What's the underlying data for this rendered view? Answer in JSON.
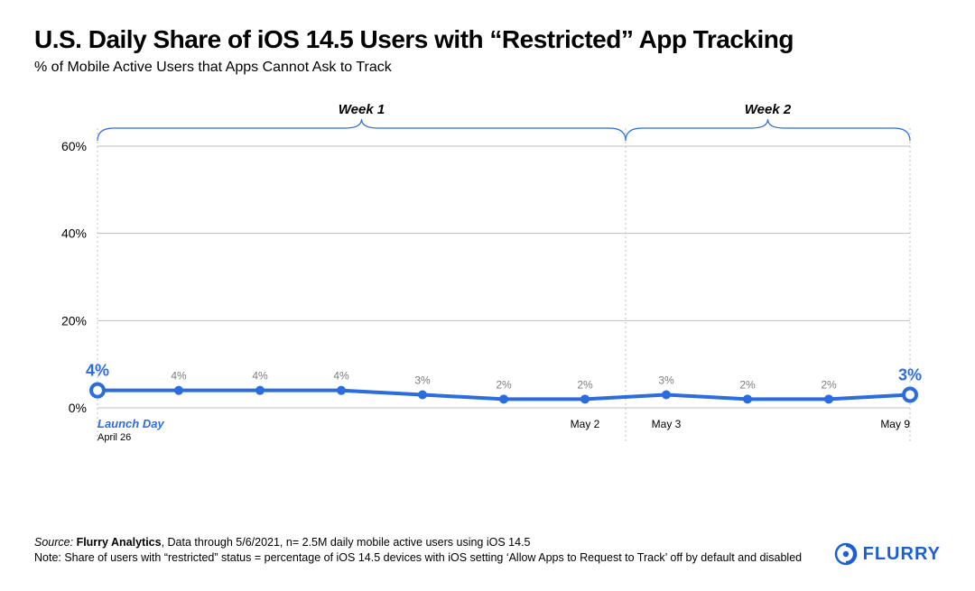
{
  "title": "U.S. Daily Share of iOS 14.5 Users with “Restricted” App Tracking",
  "subtitle": "% of Mobile Active Users that Apps Cannot Ask to Track",
  "chart": {
    "type": "line",
    "background_color": "#ffffff",
    "grid_color": "#bfbfbf",
    "line_color": "#2b6cde",
    "line_width": 4,
    "marker_fill": "#2b6cde",
    "marker_stroke": "#2b6cde",
    "marker_radius": 5,
    "endpoint_marker_fill": "#ffffff",
    "endpoint_marker_stroke": "#2b6cde",
    "endpoint_marker_radius": 7,
    "endpoint_marker_stroke_width": 4,
    "ylim": [
      0,
      60
    ],
    "yticks": [
      0,
      20,
      40,
      60
    ],
    "ytick_labels": [
      "0%",
      "20%",
      "40%",
      "60%"
    ],
    "ytick_fontsize": 14,
    "ytick_color": "#000000",
    "week_label_fontsize": 15,
    "week_label_style": "italic",
    "week_label_weight": "700",
    "week1_label": "Week 1",
    "week2_label": "Week 2",
    "brace_color": "#2b6cde",
    "brace_stroke_width": 1.2,
    "point_label_fontsize": 12,
    "point_label_color": "#7d7d7d",
    "endpoint_label_fontsize": 18,
    "endpoint_label_color": "#2b6cde",
    "endpoint_label_weight": "900",
    "xaxis_label_fontsize": 12,
    "xaxis_label_color": "#000000",
    "launch_label": "Launch Day",
    "launch_label_color": "#2b6cde",
    "launch_label_weight": "700",
    "launch_label_style": "italic",
    "april26_label": "April 26",
    "may2_label": "May 2",
    "may3_label": "May 3",
    "may9_label": "May 9",
    "values": [
      4,
      4,
      4,
      4,
      3,
      2,
      2,
      3,
      2,
      2,
      3
    ],
    "value_labels": [
      "4%",
      "4%",
      "4%",
      "4%",
      "3%",
      "2%",
      "2%",
      "3%",
      "2%",
      "2%",
      "3%"
    ],
    "endpoint_indices": [
      0,
      10
    ]
  },
  "footer": {
    "source_prefix": "Source: ",
    "source_name": "Flurry Analytics",
    "source_rest": ", Data through 5/6/2021, n= 2.5M daily mobile active users using iOS 14.5",
    "note": "Note: Share of users with “restricted” status = percentage of iOS 14.5 devices with iOS setting ‘Allow Apps to Request to Track’ off by default and disabled",
    "logo_text": "FLURRY",
    "logo_color": "#1a5fd6"
  }
}
